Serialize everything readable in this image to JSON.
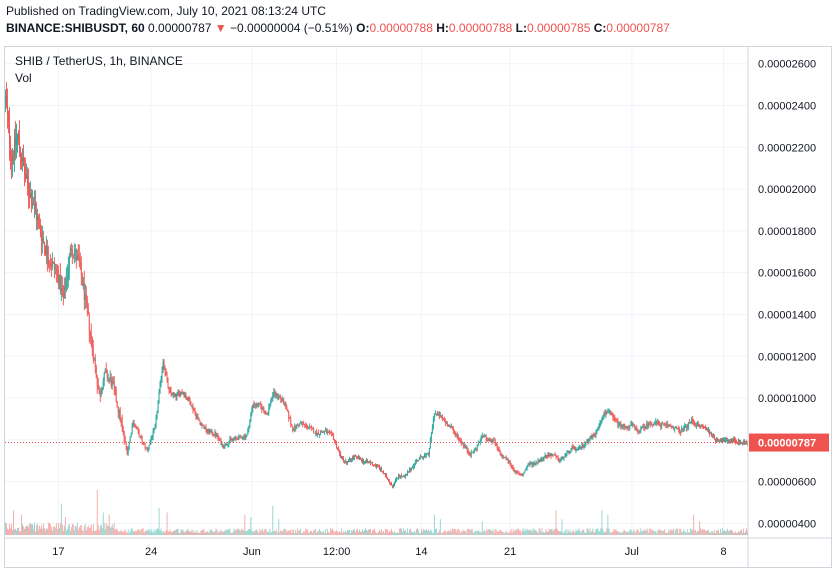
{
  "header": {
    "published": "Published on TradingView.com, July 10, 2021 08:13:24 UTC",
    "symbol_full": "BINANCE:SHIBUSDT, 60",
    "last_price": "0.00000787",
    "change_arrow": "▼",
    "change": "−0.00000004 (−0.51%)",
    "open_label": "O:",
    "open": "0.00000788",
    "high_label": "H:",
    "high": "0.00000788",
    "low_label": "L:",
    "low": "0.00000785",
    "close_label": "C:",
    "close": "0.00000787"
  },
  "legend": {
    "title": "SHIB / TetherUS, 1h, BINANCE",
    "volume": "Vol"
  },
  "colors": {
    "up": "#26a69a",
    "down": "#ef5350",
    "vol_up": "#8fd3cc",
    "vol_down": "#f5a7a5",
    "grid": "#f0f3fa",
    "price_tag_bg": "#ef5350",
    "price_tag_text": "#ffffff"
  },
  "chart_data": {
    "type": "candlestick",
    "symbol": "SHIBUSDT",
    "interval": "1h",
    "exchange": "BINANCE",
    "y_axis": {
      "ticks": [
        "0.00002600",
        "0.00002400",
        "0.00002200",
        "0.00002000",
        "0.00001800",
        "0.00001600",
        "0.00001400",
        "0.00001200",
        "0.00001000",
        "0.00000800",
        "0.00000600",
        "0.00000400"
      ],
      "tick_values": [
        2.6e-05,
        2.4e-05,
        2.2e-05,
        2e-05,
        1.8e-05,
        1.6e-05,
        1.4e-05,
        1.2e-05,
        1e-05,
        8e-06,
        6e-06,
        4e-06
      ],
      "ylim": [
        3.35e-06,
        2.68e-05
      ]
    },
    "x_axis": {
      "ticks": [
        "17",
        "24",
        "Jun",
        "12:00",
        "14",
        "21",
        "Jul",
        "8"
      ],
      "tick_index": [
        53,
        146,
        247,
        332,
        417,
        506,
        628,
        720
      ]
    },
    "last_price_label": "0.00000787",
    "last_price": 7.87e-06,
    "price_series": [
      [
        0,
        2.43e-05
      ],
      [
        6,
        2.15e-05
      ],
      [
        12,
        2.25e-05
      ],
      [
        20,
        2.05e-05
      ],
      [
        28,
        1.93e-05
      ],
      [
        36,
        1.78e-05
      ],
      [
        44,
        1.66e-05
      ],
      [
        52,
        1.6e-05
      ],
      [
        58,
        1.47e-05
      ],
      [
        66,
        1.73e-05
      ],
      [
        74,
        1.64e-05
      ],
      [
        82,
        1.41e-05
      ],
      [
        88,
        1.21e-05
      ],
      [
        94,
        1.01e-05
      ],
      [
        100,
        1.12e-05
      ],
      [
        108,
        1.06e-05
      ],
      [
        116,
        8.8e-06
      ],
      [
        122,
        7.4e-06
      ],
      [
        128,
        8.9e-06
      ],
      [
        136,
        8e-06
      ],
      [
        142,
        7.5e-06
      ],
      [
        150,
        8.6e-06
      ],
      [
        158,
        1.18e-05
      ],
      [
        164,
        1.03e-05
      ],
      [
        170,
        1.01e-05
      ],
      [
        178,
        1.03e-05
      ],
      [
        186,
        9.7e-06
      ],
      [
        194,
        8.9e-06
      ],
      [
        202,
        8.4e-06
      ],
      [
        210,
        8.3e-06
      ],
      [
        218,
        7.7e-06
      ],
      [
        226,
        8e-06
      ],
      [
        234,
        8.1e-06
      ],
      [
        242,
        8.2e-06
      ],
      [
        248,
        9.7e-06
      ],
      [
        256,
        9.6e-06
      ],
      [
        262,
        9.2e-06
      ],
      [
        268,
        1.02e-05
      ],
      [
        274,
        1.01e-05
      ],
      [
        280,
        9.7e-06
      ],
      [
        288,
        8.5e-06
      ],
      [
        296,
        8.8e-06
      ],
      [
        304,
        8.6e-06
      ],
      [
        312,
        8.3e-06
      ],
      [
        320,
        8.4e-06
      ],
      [
        328,
        8.2e-06
      ],
      [
        336,
        7.2e-06
      ],
      [
        342,
        6.9e-06
      ],
      [
        350,
        7.2e-06
      ],
      [
        358,
        7e-06
      ],
      [
        366,
        6.9e-06
      ],
      [
        374,
        6.7e-06
      ],
      [
        382,
        6.2e-06
      ],
      [
        388,
        5.8e-06
      ],
      [
        394,
        6.3e-06
      ],
      [
        400,
        6.2e-06
      ],
      [
        406,
        6.6e-06
      ],
      [
        412,
        7e-06
      ],
      [
        418,
        7.2e-06
      ],
      [
        424,
        7.3e-06
      ],
      [
        430,
        9.3e-06
      ],
      [
        436,
        9.1e-06
      ],
      [
        442,
        8.8e-06
      ],
      [
        448,
        8.5e-06
      ],
      [
        454,
        8.1e-06
      ],
      [
        460,
        7.7e-06
      ],
      [
        466,
        7.3e-06
      ],
      [
        472,
        7.6e-06
      ],
      [
        478,
        8.2e-06
      ],
      [
        484,
        8e-06
      ],
      [
        490,
        7.9e-06
      ],
      [
        496,
        7.3e-06
      ],
      [
        504,
        7e-06
      ],
      [
        512,
        6.4e-06
      ],
      [
        518,
        6.3e-06
      ],
      [
        524,
        6.8e-06
      ],
      [
        532,
        6.9e-06
      ],
      [
        540,
        7.2e-06
      ],
      [
        548,
        7.3e-06
      ],
      [
        556,
        7e-06
      ],
      [
        562,
        7.3e-06
      ],
      [
        568,
        7.6e-06
      ],
      [
        574,
        7.5e-06
      ],
      [
        580,
        7.8e-06
      ],
      [
        586,
        8.1e-06
      ],
      [
        592,
        8.3e-06
      ],
      [
        598,
        9.1e-06
      ],
      [
        604,
        9.4e-06
      ],
      [
        610,
        9e-06
      ],
      [
        616,
        8.7e-06
      ],
      [
        622,
        8.6e-06
      ],
      [
        628,
        8.7e-06
      ],
      [
        634,
        8.4e-06
      ],
      [
        640,
        8.6e-06
      ],
      [
        646,
        8.8e-06
      ],
      [
        652,
        8.8e-06
      ],
      [
        658,
        8.7e-06
      ],
      [
        664,
        8.7e-06
      ],
      [
        670,
        8.6e-06
      ],
      [
        676,
        8.4e-06
      ],
      [
        682,
        8.6e-06
      ],
      [
        688,
        8.9e-06
      ],
      [
        694,
        8.7e-06
      ],
      [
        700,
        8.6e-06
      ],
      [
        706,
        8.4e-06
      ],
      [
        712,
        8e-06
      ],
      [
        718,
        8e-06
      ],
      [
        724,
        7.9e-06
      ],
      [
        730,
        8e-06
      ],
      [
        736,
        7.9e-06
      ],
      [
        742,
        7.87e-06
      ]
    ],
    "volume_spikes": [
      [
        8,
        0.55
      ],
      [
        16,
        0.45
      ],
      [
        56,
        0.7
      ],
      [
        60,
        0.4
      ],
      [
        92,
        1.0
      ],
      [
        98,
        0.5
      ],
      [
        104,
        0.45
      ],
      [
        154,
        0.6
      ],
      [
        162,
        0.5
      ],
      [
        240,
        0.45
      ],
      [
        246,
        0.4
      ],
      [
        268,
        0.65
      ],
      [
        274,
        0.35
      ],
      [
        430,
        0.45
      ],
      [
        436,
        0.35
      ],
      [
        478,
        0.3
      ],
      [
        552,
        0.55
      ],
      [
        558,
        0.35
      ],
      [
        598,
        0.55
      ],
      [
        604,
        0.45
      ],
      [
        690,
        0.45
      ],
      [
        696,
        0.3
      ]
    ]
  }
}
